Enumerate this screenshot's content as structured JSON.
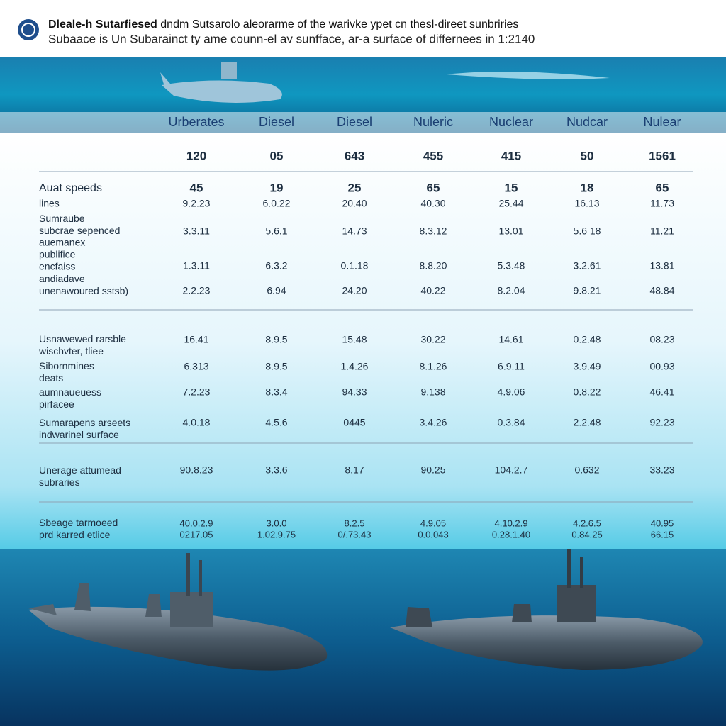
{
  "header": {
    "title_bold": "Dleale-h Sutarfiesed",
    "title": "dndm Sutsarolo aleorarme of the warivke ypet cn thesl-direet sunbriries",
    "subtitle": "Subaace is Un Subarainct ty ame counn-el av sunfface, ar-a surface of differnees in 1:2140"
  },
  "table": {
    "columns": [
      "Urberates",
      "Diesel",
      "Diesel",
      "Nuleric",
      "Nuclear",
      "Nudcar",
      "Nulear"
    ],
    "rows": [
      {
        "cells": [
          "120",
          "05",
          "643",
          "455",
          "415",
          "50",
          "1561"
        ]
      },
      {
        "label": [
          "Auat speeds"
        ],
        "cells": [
          "45",
          "19",
          "25",
          "65",
          "15",
          "18",
          "65"
        ]
      },
      {
        "label": [
          "lines"
        ],
        "cells": [
          "9.2.23",
          "6.0.22",
          "20.40",
          "40.30",
          "25.44",
          "16.13",
          "11.73"
        ]
      },
      {
        "label": [
          "Sumraube",
          "subcrae sepenced"
        ],
        "cells": [
          "3.3.11",
          "5.6.1",
          "14.73",
          "8.3.12",
          "13.01",
          "5.6 18",
          "11.21"
        ]
      },
      {
        "label": [
          "auemanex",
          "publifice",
          "encfaiss"
        ],
        "cells": [
          "1.3.11",
          "6.3.2",
          "0.1.18",
          "8.8.20",
          "5.3.48",
          "3.2.61",
          "13.81"
        ]
      },
      {
        "label": [
          "andiadave",
          "unenawoured sstsb)"
        ],
        "cells": [
          "2.2.23",
          "6.94",
          "24.20",
          "40.22",
          "8.2.04",
          "9.8.21",
          "48.84"
        ]
      },
      {
        "label": [
          "Usnawewed rarsble",
          "wischvter, tliee"
        ],
        "cells": [
          "16.41",
          "8.9.5",
          "15.48",
          "30.22",
          "14.61",
          "0.2.48",
          "08.23"
        ]
      },
      {
        "label": [
          "Sibornmines",
          "deats"
        ],
        "cells": [
          "6.313",
          "8.9.5",
          "1.4.26",
          "8.1.26",
          "6.9.11",
          "3.9.49",
          "00.93"
        ]
      },
      {
        "label": [
          "aumnaueuess",
          "pirfacee"
        ],
        "cells": [
          "7.2.23",
          "8.3.4",
          "94.33",
          "9.138",
          "4.9.06",
          "0.8.22",
          "46.41"
        ]
      },
      {
        "label": [
          "Sumarapens arseets",
          "indwarinel surface"
        ],
        "cells": [
          "4.0.18",
          "4.5.6",
          "0445",
          "3.4.26",
          "0.3.84",
          "2.2.48",
          "92.23"
        ]
      },
      {
        "label": [
          "Unerage attumead",
          "subraries"
        ],
        "cells": [
          "90.8.23",
          "3.3.6",
          "8.17",
          "90.25",
          "104.2.7",
          "0.632",
          "33.23"
        ]
      },
      {
        "label": [
          "Sbeage tarmoeed",
          "prd karred etlice"
        ],
        "cells": [
          [
            "40.0.2.9",
            "0217.05"
          ],
          [
            "3.0.0",
            "1.02.9.75"
          ],
          [
            "8.2.5",
            "0/.73.43"
          ],
          [
            "4.9.05",
            "0.0.043"
          ],
          [
            "4.10.2.9",
            "0.28.1.40"
          ],
          [
            "4.2.6.5",
            "0.84.25"
          ],
          [
            "40.95",
            "66.15"
          ]
        ]
      }
    ]
  }
}
